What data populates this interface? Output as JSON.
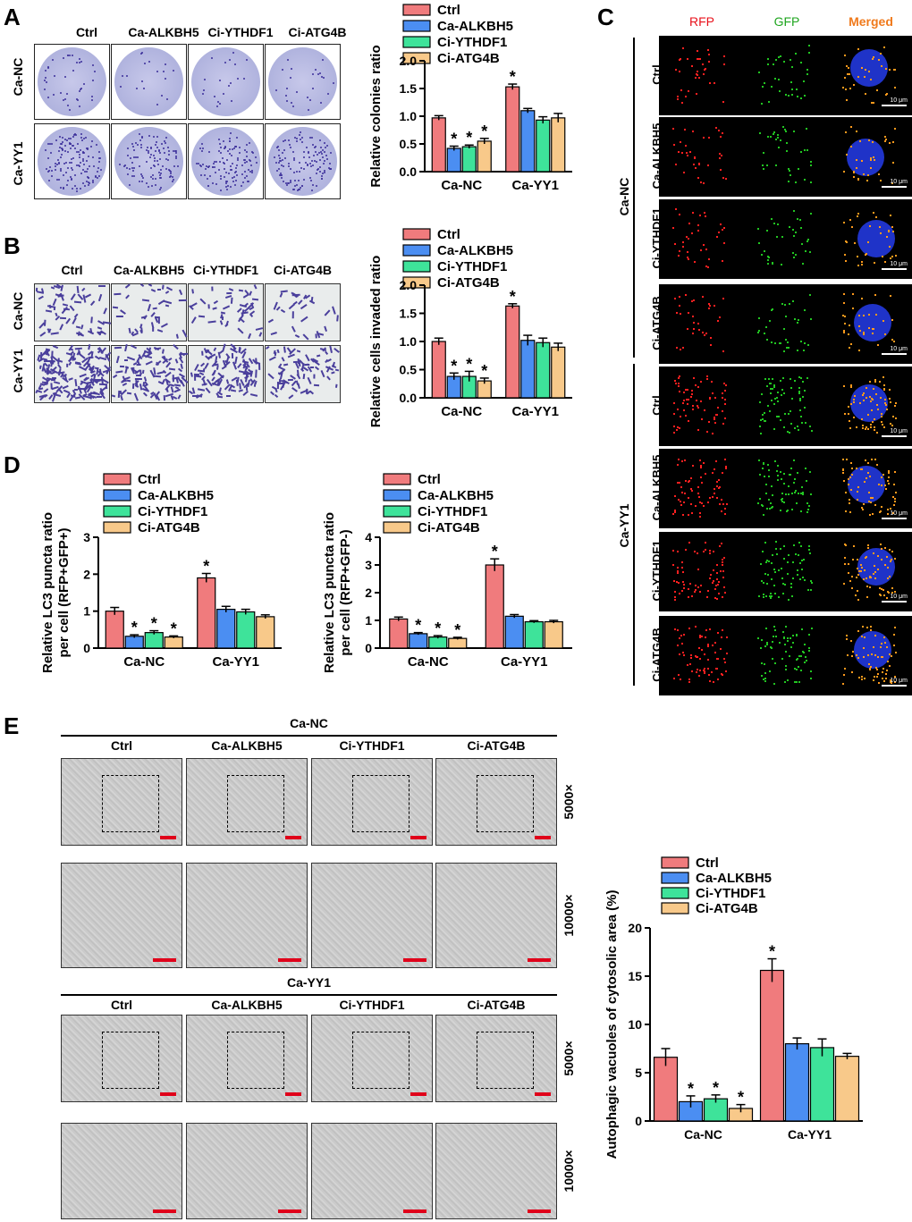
{
  "panels": {
    "a": "A",
    "b": "B",
    "c": "C",
    "d": "D",
    "e": "E"
  },
  "conditions": [
    "Ctrl",
    "Ca-ALKBH5",
    "Ci-YTHDF1",
    "Ci-ATG4B"
  ],
  "groups": [
    "Ca-NC",
    "Ca-YY1"
  ],
  "confocal": {
    "channels": [
      "RFP",
      "GFP",
      "Merged"
    ],
    "scale_label": "10 μm"
  },
  "em": {
    "mags": [
      "5000×",
      "10000×"
    ]
  },
  "colors": {
    "Ctrl": "#f07b7d",
    "Ca-ALKBH5": "#4b8ef2",
    "Ci-YTHDF1": "#3ee39a",
    "Ci-ATG4B": "#f8c98a"
  },
  "chart_data": [
    {
      "id": "A",
      "type": "bar",
      "categories": [
        "Ca-NC",
        "Ca-YY1"
      ],
      "ylabel": "Relative colonies ratio",
      "ylim": [
        0,
        2.0
      ],
      "yticks": [
        "0.0",
        "0.5",
        "1.0",
        "1.5",
        "2.0"
      ],
      "legend": [
        "Ctrl",
        "Ca-ALKBH5",
        "Ci-YTHDF1",
        "Ci-ATG4B"
      ],
      "series": [
        {
          "name": "Ctrl",
          "values": [
            0.97,
            1.53
          ],
          "err": [
            0.04,
            0.05
          ],
          "star": [
            false,
            true
          ]
        },
        {
          "name": "Ca-ALKBH5",
          "values": [
            0.42,
            1.1
          ],
          "err": [
            0.04,
            0.04
          ],
          "star": [
            true,
            false
          ]
        },
        {
          "name": "Ci-YTHDF1",
          "values": [
            0.45,
            0.93
          ],
          "err": [
            0.03,
            0.06
          ],
          "star": [
            true,
            false
          ]
        },
        {
          "name": "Ci-ATG4B",
          "values": [
            0.55,
            0.97
          ],
          "err": [
            0.05,
            0.08
          ],
          "star": [
            true,
            false
          ]
        }
      ]
    },
    {
      "id": "B",
      "type": "bar",
      "categories": [
        "Ca-NC",
        "Ca-YY1"
      ],
      "ylabel": "Relative cells invaded ratio",
      "ylim": [
        0,
        2.0
      ],
      "yticks": [
        "0.0",
        "0.5",
        "1.0",
        "1.5",
        "2.0"
      ],
      "legend": [
        "Ctrl",
        "Ca-ALKBH5",
        "Ci-YTHDF1",
        "Ci-ATG4B"
      ],
      "series": [
        {
          "name": "Ctrl",
          "values": [
            1.0,
            1.63
          ],
          "err": [
            0.06,
            0.04
          ],
          "star": [
            false,
            true
          ]
        },
        {
          "name": "Ca-ALKBH5",
          "values": [
            0.38,
            1.02
          ],
          "err": [
            0.06,
            0.09
          ],
          "star": [
            true,
            false
          ]
        },
        {
          "name": "Ci-YTHDF1",
          "values": [
            0.38,
            0.98
          ],
          "err": [
            0.09,
            0.08
          ],
          "star": [
            true,
            false
          ]
        },
        {
          "name": "Ci-ATG4B",
          "values": [
            0.3,
            0.9
          ],
          "err": [
            0.05,
            0.07
          ],
          "star": [
            true,
            false
          ]
        }
      ]
    },
    {
      "id": "D1",
      "type": "bar",
      "categories": [
        "Ca-NC",
        "Ca-YY1"
      ],
      "ylabel": "Relative LC3 puncta ratio|per cell (RFP+GFP+)",
      "ylim": [
        0,
        3
      ],
      "yticks": [
        "0",
        "1",
        "2",
        "3"
      ],
      "legend": [
        "Ctrl",
        "Ca-ALKBH5",
        "Ci-YTHDF1",
        "Ci-ATG4B"
      ],
      "series": [
        {
          "name": "Ctrl",
          "values": [
            1.0,
            1.9
          ],
          "err": [
            0.1,
            0.12
          ],
          "star": [
            false,
            true
          ]
        },
        {
          "name": "Ca-ALKBH5",
          "values": [
            0.32,
            1.05
          ],
          "err": [
            0.04,
            0.08
          ],
          "star": [
            true,
            false
          ]
        },
        {
          "name": "Ci-YTHDF1",
          "values": [
            0.42,
            0.98
          ],
          "err": [
            0.05,
            0.07
          ],
          "star": [
            true,
            false
          ]
        },
        {
          "name": "Ci-ATG4B",
          "values": [
            0.3,
            0.85
          ],
          "err": [
            0.03,
            0.05
          ],
          "star": [
            true,
            false
          ]
        }
      ]
    },
    {
      "id": "D2",
      "type": "bar",
      "categories": [
        "Ca-NC",
        "Ca-YY1"
      ],
      "ylabel": "Relative LC3 puncta ratio|per cell (RFP+GFP-)",
      "ylim": [
        0,
        4
      ],
      "yticks": [
        "0",
        "1",
        "2",
        "3",
        "4"
      ],
      "legend": [
        "Ctrl",
        "Ca-ALKBH5",
        "Ci-YTHDF1",
        "Ci-ATG4B"
      ],
      "series": [
        {
          "name": "Ctrl",
          "values": [
            1.05,
            3.0
          ],
          "err": [
            0.07,
            0.22
          ],
          "star": [
            false,
            true
          ]
        },
        {
          "name": "Ca-ALKBH5",
          "values": [
            0.52,
            1.15
          ],
          "err": [
            0.04,
            0.06
          ],
          "star": [
            true,
            false
          ]
        },
        {
          "name": "Ci-YTHDF1",
          "values": [
            0.4,
            0.95
          ],
          "err": [
            0.05,
            0.04
          ],
          "star": [
            true,
            false
          ]
        },
        {
          "name": "Ci-ATG4B",
          "values": [
            0.35,
            0.95
          ],
          "err": [
            0.04,
            0.05
          ],
          "star": [
            true,
            false
          ]
        }
      ]
    },
    {
      "id": "E",
      "type": "bar",
      "categories": [
        "Ca-NC",
        "Ca-YY1"
      ],
      "ylabel": "Autophagic vacuoles of cytosolic area (%)",
      "ylim": [
        0,
        20
      ],
      "yticks": [
        "0",
        "5",
        "10",
        "15",
        "20"
      ],
      "legend": [
        "Ctrl",
        "Ca-ALKBH5",
        "Ci-YTHDF1",
        "Ci-ATG4B"
      ],
      "series": [
        {
          "name": "Ctrl",
          "values": [
            6.6,
            15.6
          ],
          "err": [
            0.9,
            1.2
          ],
          "star": [
            false,
            true
          ]
        },
        {
          "name": "Ca-ALKBH5",
          "values": [
            2.0,
            8.0
          ],
          "err": [
            0.6,
            0.6
          ],
          "star": [
            true,
            false
          ]
        },
        {
          "name": "Ci-YTHDF1",
          "values": [
            2.3,
            7.6
          ],
          "err": [
            0.4,
            0.9
          ],
          "star": [
            true,
            false
          ]
        },
        {
          "name": "Ci-ATG4B",
          "values": [
            1.3,
            6.7
          ],
          "err": [
            0.4,
            0.3
          ],
          "star": [
            true,
            false
          ]
        }
      ]
    }
  ]
}
